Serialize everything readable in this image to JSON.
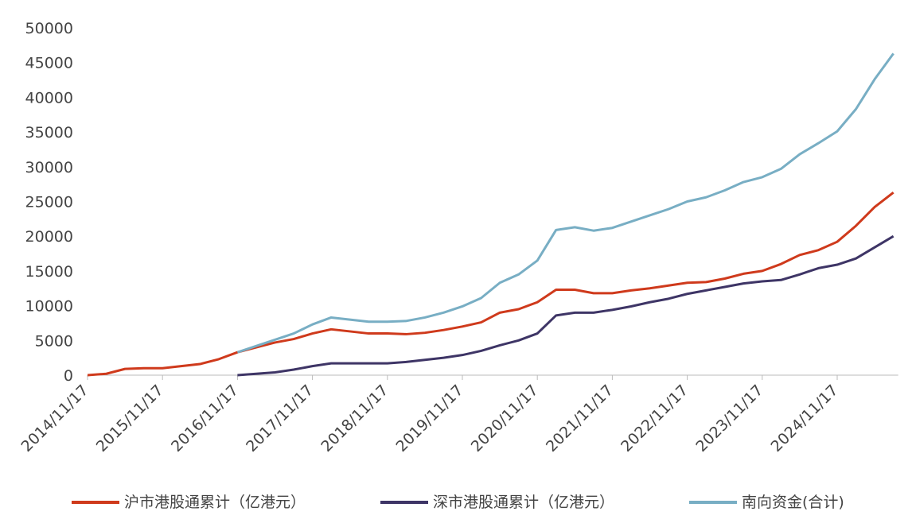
{
  "chart_data": {
    "type": "line",
    "categories": [
      "2014/11/17",
      null,
      null,
      null,
      "2015/11/17",
      null,
      null,
      null,
      "2016/11/17",
      null,
      null,
      null,
      "2017/11/17",
      null,
      null,
      null,
      "2018/11/17",
      null,
      null,
      null,
      "2019/11/17",
      null,
      null,
      null,
      "2020/11/17",
      null,
      null,
      null,
      "2021/11/17",
      null,
      null,
      null,
      "2022/11/17",
      null,
      null,
      null,
      "2023/11/17",
      null,
      null,
      null,
      "2024/11/17",
      null,
      null,
      null
    ],
    "series": [
      {
        "name": "沪市港股通累计（亿港元）",
        "color": "#cf3a1c",
        "values": [
          0,
          200,
          900,
          1000,
          1000,
          1300,
          1600,
          2300,
          3300,
          4000,
          4700,
          5200,
          6000,
          6600,
          6300,
          6000,
          6000,
          5900,
          6100,
          6500,
          7000,
          7600,
          9000,
          9500,
          10500,
          12300,
          12300,
          11800,
          11800,
          12200,
          12500,
          12900,
          13300,
          13400,
          13900,
          14600,
          15000,
          16000,
          17300,
          18000,
          19200,
          21500,
          24200,
          26300
        ]
      },
      {
        "name": "深市港股通累计（亿港元）",
        "color": "#3e3566",
        "values": [
          null,
          null,
          null,
          null,
          null,
          null,
          null,
          null,
          0,
          200,
          400,
          800,
          1300,
          1700,
          1700,
          1700,
          1700,
          1900,
          2200,
          2500,
          2900,
          3500,
          4300,
          5000,
          6000,
          8600,
          9000,
          9000,
          9400,
          9900,
          10500,
          11000,
          11700,
          12200,
          12700,
          13200,
          13500,
          13700,
          14500,
          15400,
          15900,
          16800,
          18400,
          20000
        ]
      },
      {
        "name": "南向资金(合计)",
        "color": "#78aec4",
        "values": [
          null,
          null,
          null,
          null,
          null,
          null,
          null,
          null,
          3300,
          4200,
          5100,
          6000,
          7300,
          8300,
          8000,
          7700,
          7700,
          7800,
          8300,
          9000,
          9900,
          11100,
          13300,
          14500,
          16500,
          20900,
          21300,
          20800,
          21200,
          22100,
          23000,
          23900,
          25000,
          25600,
          26600,
          27800,
          28500,
          29700,
          31800,
          33400,
          35100,
          38300,
          42600,
          46300
        ]
      }
    ],
    "ylim": [
      0,
      50000
    ],
    "yticks": [
      0,
      5000,
      10000,
      15000,
      20000,
      25000,
      30000,
      35000,
      40000,
      45000,
      50000
    ],
    "grid": false
  }
}
